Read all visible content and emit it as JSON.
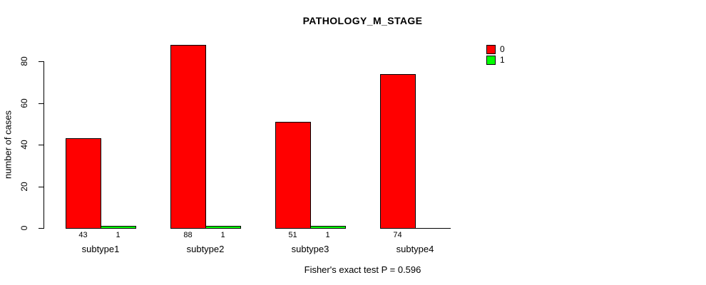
{
  "chart_data": {
    "type": "bar",
    "title": "PATHOLOGY_M_STAGE",
    "xlabel": "",
    "ylabel": "number of cases",
    "categories": [
      "subtype1",
      "subtype2",
      "subtype3",
      "subtype4"
    ],
    "series": [
      {
        "name": "0",
        "color": "#FF0000",
        "values": [
          43,
          88,
          51,
          74
        ]
      },
      {
        "name": "1",
        "color": "#00FF00",
        "values": [
          1,
          1,
          1,
          0
        ]
      }
    ],
    "value_labels": [
      [
        "43",
        "1"
      ],
      [
        "88",
        "1"
      ],
      [
        "51",
        "1"
      ],
      [
        "74",
        ""
      ]
    ],
    "yticks": [
      0,
      20,
      40,
      60,
      80
    ],
    "ylim": [
      0,
      88
    ],
    "grid": false,
    "legend_position": "top-right",
    "bar_border_color": "#000000",
    "background_color": "#FFFFFF",
    "annotation": "Fisher's exact test P = 0.596"
  }
}
